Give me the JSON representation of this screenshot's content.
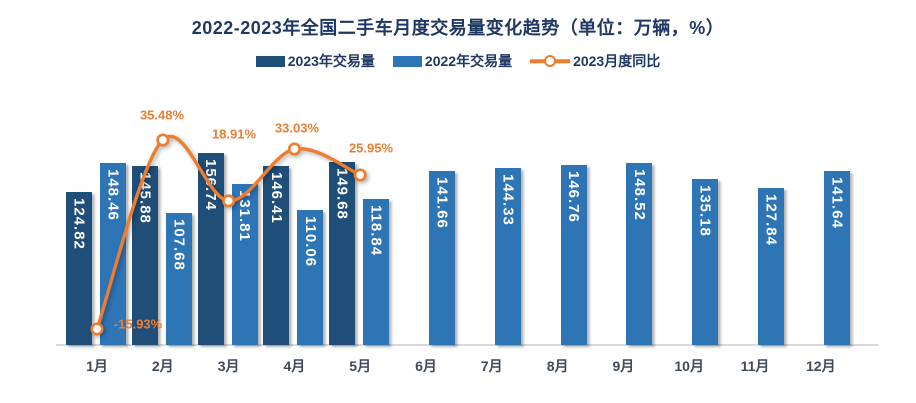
{
  "colors": {
    "bar_2023": "#1F4E79",
    "bar_2022": "#2E75B6",
    "line_yoy": "#ED7D31",
    "title_text": "#1F3864",
    "legend_text": "#1F3864",
    "axis_label_text": "#3D4A5A",
    "axis_line": "#D9D9D9",
    "bar_value_text": "#FFFFFF"
  },
  "chart_data": {
    "type": "combo: grouped bar + smoothed line",
    "title": "2022-2023年全国二手车月度交易量变化趋势（单位：万辆，%）",
    "categories": [
      "1月",
      "2月",
      "3月",
      "4月",
      "5月",
      "6月",
      "7月",
      "8月",
      "9月",
      "10月",
      "11月",
      "12月"
    ],
    "series": [
      {
        "name": "2023年交易量",
        "type": "bar",
        "color": "#1F4E79",
        "unit": "万辆",
        "values": [
          124.82,
          145.88,
          156.74,
          146.41,
          149.68,
          null,
          null,
          null,
          null,
          null,
          null,
          null
        ]
      },
      {
        "name": "2022年交易量",
        "type": "bar",
        "color": "#2E75B6",
        "unit": "万辆",
        "values": [
          148.46,
          107.68,
          131.81,
          110.06,
          118.84,
          141.66,
          144.33,
          146.76,
          148.52,
          135.18,
          127.84,
          141.64
        ]
      },
      {
        "name": "2023月度同比",
        "type": "line",
        "color": "#ED7D31",
        "unit": "%",
        "marker": "open-circle",
        "values": [
          -15.93,
          35.48,
          18.91,
          33.03,
          25.95,
          null,
          null,
          null,
          null,
          null,
          null,
          null
        ]
      }
    ],
    "legend_position": "top",
    "grid": false,
    "y_axis_visible": false,
    "value_labels": "bars: white rotated 90°; line points: orange with % suffix"
  }
}
